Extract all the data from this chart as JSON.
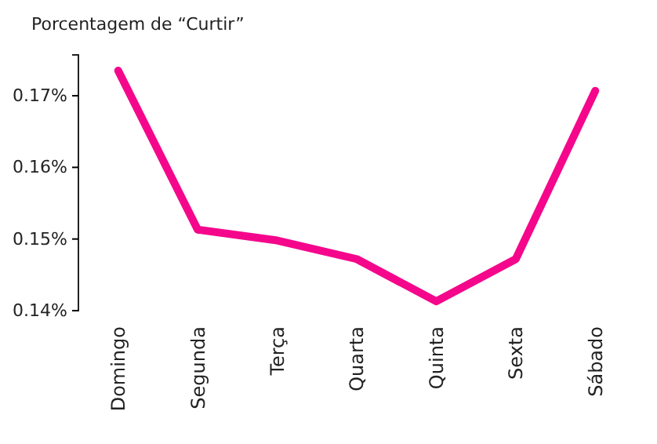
{
  "chart_data": {
    "type": "line",
    "title": "Porcentagem de “Curtir”",
    "categories": [
      "Domingo",
      "Segunda",
      "Terça",
      "Quarta",
      "Quinta",
      "Sexta",
      "Sábado"
    ],
    "series": [
      {
        "color": "#f5078c",
        "values": [
          0.1735,
          0.1513,
          0.1498,
          0.1472,
          0.1413,
          0.1472,
          0.1707
        ]
      }
    ],
    "ylim": [
      0.14,
      0.1757
    ],
    "yticks": [
      {
        "value": 0.14,
        "label": "0.14%"
      },
      {
        "value": 0.15,
        "label": "0.15%"
      },
      {
        "value": 0.16,
        "label": "0.16%"
      },
      {
        "value": 0.17,
        "label": "0.17%"
      }
    ],
    "grid": false,
    "marker": "none",
    "line_style": "solid"
  }
}
